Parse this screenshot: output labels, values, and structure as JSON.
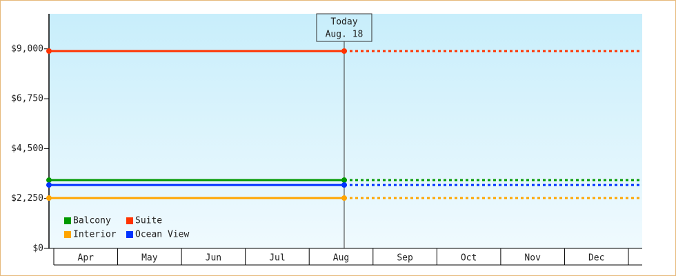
{
  "chart_data": {
    "type": "line",
    "categories": [
      "Apr",
      "May",
      "Jun",
      "Jul",
      "Aug",
      "Sep",
      "Oct",
      "Nov",
      "Dec"
    ],
    "series": [
      {
        "name": "Balcony",
        "color": "#009900",
        "value": 3080
      },
      {
        "name": "Suite",
        "color": "#ff3300",
        "value": 8900
      },
      {
        "name": "Interior",
        "color": "#ffa500",
        "value": 2270
      },
      {
        "name": "Ocean View",
        "color": "#0033ff",
        "value": 2860
      }
    ],
    "ylim": [
      0,
      10580
    ],
    "yticks": [
      {
        "value": 0,
        "label": "$0"
      },
      {
        "value": 2250,
        "label": "$2,250"
      },
      {
        "value": 4500,
        "label": "$4,500"
      },
      {
        "value": 6750,
        "label": "$6,750"
      },
      {
        "value": 9000,
        "label": "$9,000"
      }
    ],
    "today": {
      "lines": [
        "Today",
        "Aug. 18"
      ],
      "month": "Aug",
      "day": 18
    },
    "legend": "lower left"
  }
}
